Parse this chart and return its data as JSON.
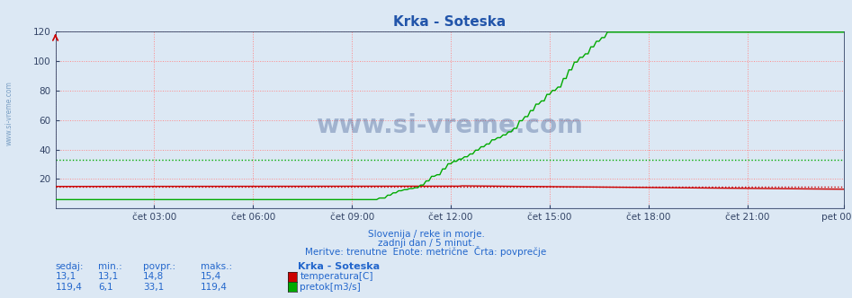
{
  "title": "Krka - Soteska",
  "bg_color": "#dce8f4",
  "plot_bg_color": "#dce8f4",
  "title_color": "#2255aa",
  "title_fontsize": 11,
  "ylim": [
    0,
    120
  ],
  "yticks": [
    20,
    40,
    60,
    80,
    100,
    120
  ],
  "xtick_labels": [
    "čet 03:00",
    "čet 06:00",
    "čet 09:00",
    "čet 12:00",
    "čet 15:00",
    "čet 18:00",
    "čet 21:00",
    "pet 00:00"
  ],
  "xtick_positions": [
    36,
    72,
    108,
    144,
    180,
    216,
    252,
    287
  ],
  "n_points": 288,
  "temp_color": "#cc0000",
  "flow_color": "#00aa00",
  "height_color": "#0000cc",
  "avg_temp": 14.8,
  "avg_flow": 33.1,
  "temp_min": 13.1,
  "temp_max": 15.4,
  "flow_min": 6.1,
  "flow_max": 119.4,
  "grid_color": "#ff8888",
  "watermark": "www.si-vreme.com",
  "watermark_color": "#1a3a7a",
  "subtitle1": "Slovenija / reke in morje.",
  "subtitle2": "zadnji dan / 5 minut.",
  "subtitle3": "Meritve: trenutne  Enote: metrične  Črta: povprečje",
  "subtitle_color": "#2266cc",
  "legend_title": "Krka - Soteska",
  "legend_items": [
    "temperatura[C]",
    "pretok[m3/s]"
  ],
  "legend_colors": [
    "#cc0000",
    "#00aa00"
  ],
  "legend_values_sedaj": [
    "13,1",
    "119,4"
  ],
  "legend_values_min": [
    "13,1",
    "6,1"
  ],
  "legend_values_povpr": [
    "14,8",
    "33,1"
  ],
  "legend_values_maks": [
    "15,4",
    "119,4"
  ],
  "sidebar_text": "www.si-vreme.com",
  "sidebar_color": "#4477aa",
  "col_headers": [
    "sedaj:",
    "min.:",
    "povpr.:",
    "maks.:"
  ]
}
